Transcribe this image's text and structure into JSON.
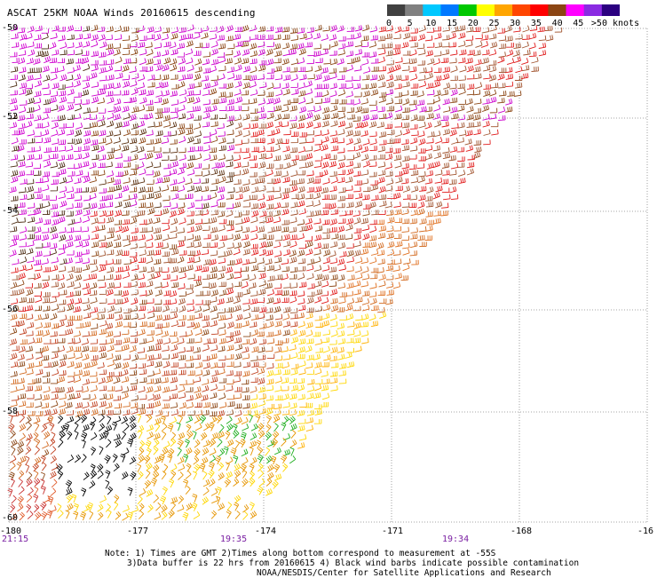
{
  "title": "ASCAT 25KM NOAA Winds 20160615 descending",
  "colorbar": {
    "colors": [
      "#404040",
      "#808080",
      "#00c8ff",
      "#0078ff",
      "#00c800",
      "#ffff00",
      "#ffa500",
      "#ff4500",
      "#ff0000",
      "#8b4513",
      "#ff00ff",
      "#8a2be2",
      "#2b0080"
    ],
    "labels": [
      "0",
      "5",
      "10",
      "15",
      "20",
      "25",
      "30",
      "35",
      "40",
      "45",
      ">50 knots"
    ]
  },
  "lat_labels": [
    "-50",
    "-52",
    "-54",
    "-56",
    "-58",
    "-60"
  ],
  "lon_labels": [
    "-180",
    "-177",
    "-174",
    "-171",
    "-168",
    "-16"
  ],
  "time_labels": [
    "21:15",
    "19:35",
    "19:34"
  ],
  "notes": [
    "Note: 1) Times are GMT 2)Times along bottom correspond to measurement at -55S",
    "3)Data buffer is 22 hrs from 20160615 4) Black wind barbs indicate possible contamination",
    "NOAA/NESDIS/Center for Satellite Applications and Research"
  ]
}
